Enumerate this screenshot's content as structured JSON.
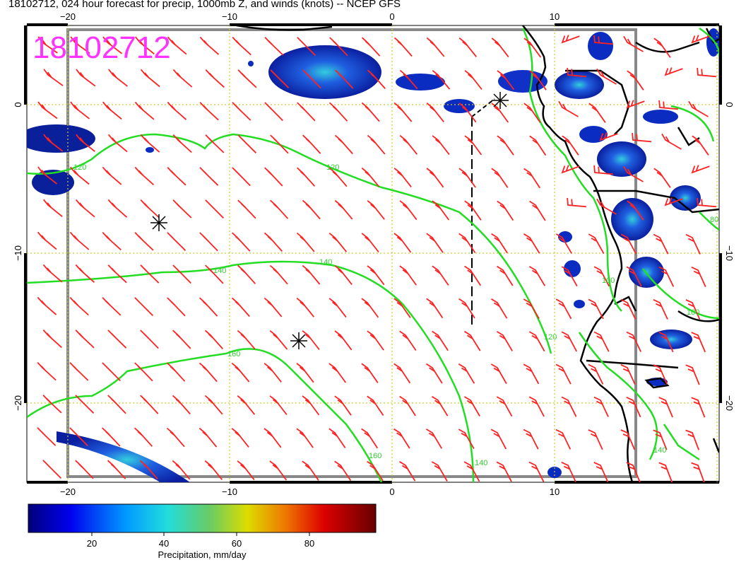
{
  "title": "18102712, 024 hour forecast for precip, 1000mb Z, and winds (knots) -- NCEP GFS",
  "date_stamp": "18102712",
  "x_ticks": [
    "−20",
    "−10",
    "0",
    "10"
  ],
  "y_ticks": [
    "0",
    "−10",
    "−20"
  ],
  "contour_labels": [
    "120",
    "120",
    "140",
    "140",
    "160",
    "160",
    "140",
    "120",
    "100",
    "100",
    "80",
    "140"
  ],
  "colorbar": {
    "title": "Precipitation, mm/day",
    "ticks": [
      "20",
      "40",
      "60",
      "80"
    ]
  },
  "colors": {
    "contour": "#22dd22",
    "barb": "#ff2222",
    "grid": "#cccc33",
    "stamp": "#ff33ff",
    "coast": "#000000"
  }
}
